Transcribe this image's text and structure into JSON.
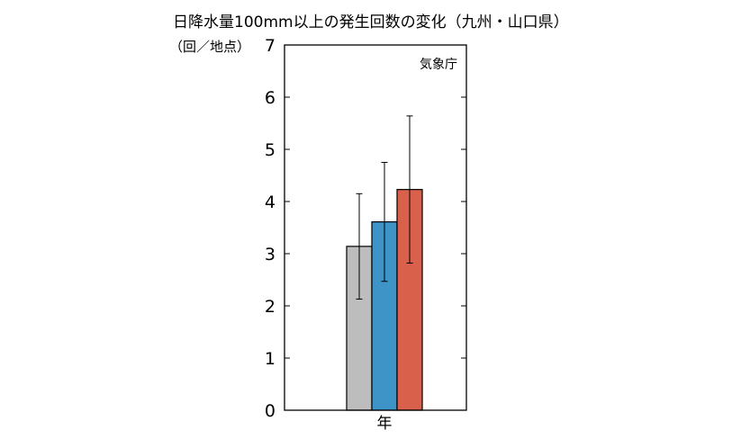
{
  "title": "日降水量100mm以上の発生回数の変化（九州・山口県）",
  "y_unit": "（回／地点）",
  "source": "気象庁",
  "colors": {
    "gray": "#bdbdbd",
    "blue": "#3e93c7",
    "red": "#d9604a"
  },
  "chart_data": {
    "type": "bar",
    "categories": [
      "年"
    ],
    "series": [
      {
        "color": "#bdbdbd",
        "values": [
          3.14
        ],
        "error_low": [
          2.13
        ],
        "error_high": [
          4.15
        ]
      },
      {
        "color": "#3e93c7",
        "values": [
          3.61
        ],
        "error_low": [
          2.47
        ],
        "error_high": [
          4.75
        ]
      },
      {
        "color": "#d9604a",
        "values": [
          4.23
        ],
        "error_low": [
          2.82
        ],
        "error_high": [
          5.64
        ]
      }
    ],
    "title": "日降水量100mm以上の発生回数の変化（九州・山口県）",
    "xlabel": "",
    "ylabel": "（回／地点）",
    "ylim": [
      0,
      7
    ],
    "yticks": [
      0,
      1,
      2,
      3,
      4,
      5,
      6,
      7
    ],
    "grid": false,
    "legend": "none"
  }
}
